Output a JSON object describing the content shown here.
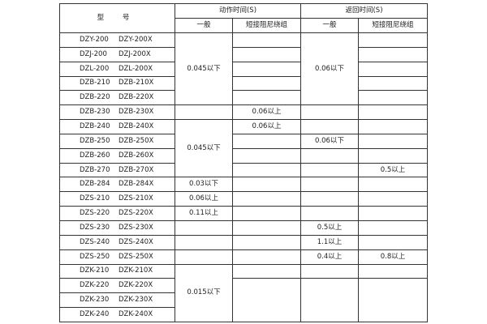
{
  "header": {
    "type": "型 号",
    "action_time": "动作时间(S)",
    "return_time": "返回时间(S)",
    "general": "一般",
    "short_damping": "短接阻尼绕组"
  },
  "rows": [
    {
      "m1": "DZY-200",
      "m2": "DZY-200X"
    },
    {
      "m1": "DZJ-200",
      "m2": "DZJ-200X"
    },
    {
      "m1": "DZL-200",
      "m2": "DZL-200X"
    },
    {
      "m1": "DZB-210",
      "m2": "DZB-210X"
    },
    {
      "m1": "DZB-220",
      "m2": "DZB-220X"
    },
    {
      "m1": "DZB-230",
      "m2": "DZB-230X"
    },
    {
      "m1": "DZB-240",
      "m2": "DZB-240X"
    },
    {
      "m1": "DZB-250",
      "m2": "DZB-250X"
    },
    {
      "m1": "DZB-260",
      "m2": "DZB-260X"
    },
    {
      "m1": "DZB-270",
      "m2": "DZB-270X"
    },
    {
      "m1": "DZB-284",
      "m2": "DZB-284X"
    },
    {
      "m1": "DZS-210",
      "m2": "DZS-210X"
    },
    {
      "m1": "DZS-220",
      "m2": "DZS-220X"
    },
    {
      "m1": "DZS-230",
      "m2": "DZS-230X"
    },
    {
      "m1": "DZS-240",
      "m2": "DZS-240X"
    },
    {
      "m1": "DZS-250",
      "m2": "DZS-250X"
    },
    {
      "m1": "DZK-210",
      "m2": "DZK-210X"
    },
    {
      "m1": "DZK-220",
      "m2": "DZK-220X"
    },
    {
      "m1": "DZK-230",
      "m2": "DZK-230X"
    },
    {
      "m1": "DZK-240",
      "m2": "DZK-240X"
    }
  ],
  "values": {
    "g1_action": "0.045以下",
    "g1_return": "0.06以下",
    "dzb230_action_short": "0.06以上",
    "dzb240_action_short": "0.06以上",
    "g2_action": "0.045以下",
    "dzb250_return": "0.06以下",
    "dzb270_return_short": "0.5以上",
    "dzb284_action": "0.03以下",
    "dzs210_action": "0.06以上",
    "dzs220_action": "0.11以上",
    "dzs230_return": "0.5以上",
    "dzs240_return": "1.1以上",
    "dzs250_return": "0.4以上",
    "dzs250_return_short": "0.8以上",
    "dzk_action": "0.015以下"
  }
}
